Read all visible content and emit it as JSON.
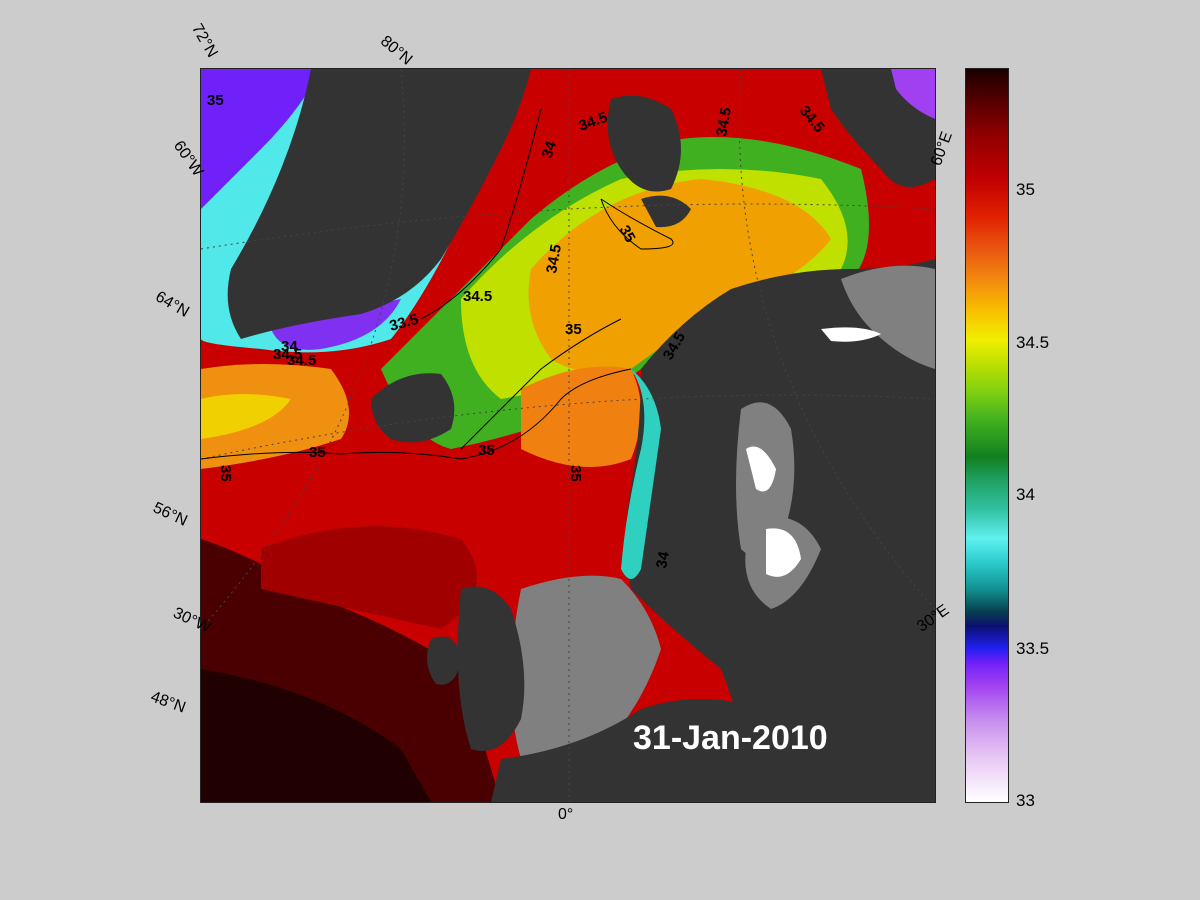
{
  "date_label": "31-Jan-2010",
  "contour_labels": [
    "34",
    "34.5",
    "34.5",
    "34.5",
    "34.5",
    "35",
    "34.5",
    "34.5",
    "33.5",
    "34",
    "34.5",
    "35",
    "34.5",
    "35",
    "35",
    "35",
    "35",
    "35",
    "34"
  ],
  "graticule_labels": {
    "lat_72": "72°N",
    "lat_80": "80°N",
    "lat_64": "64°N",
    "lat_56": "56°N",
    "lat_48": "48°N",
    "lon_60w": "60°W",
    "lon_30w": "30°W",
    "lon_0": "0°",
    "lon_30e": "30°E",
    "lon_60e": "60°E"
  },
  "colorbar": {
    "ticks": [
      "35",
      "34.5",
      "34",
      "33.5",
      "33"
    ],
    "min": 33,
    "max": 35.4
  },
  "colors": {
    "land": "#333333",
    "grey_mask": "#808080",
    "ice": "#ffffff",
    "background": "#cccccc"
  }
}
